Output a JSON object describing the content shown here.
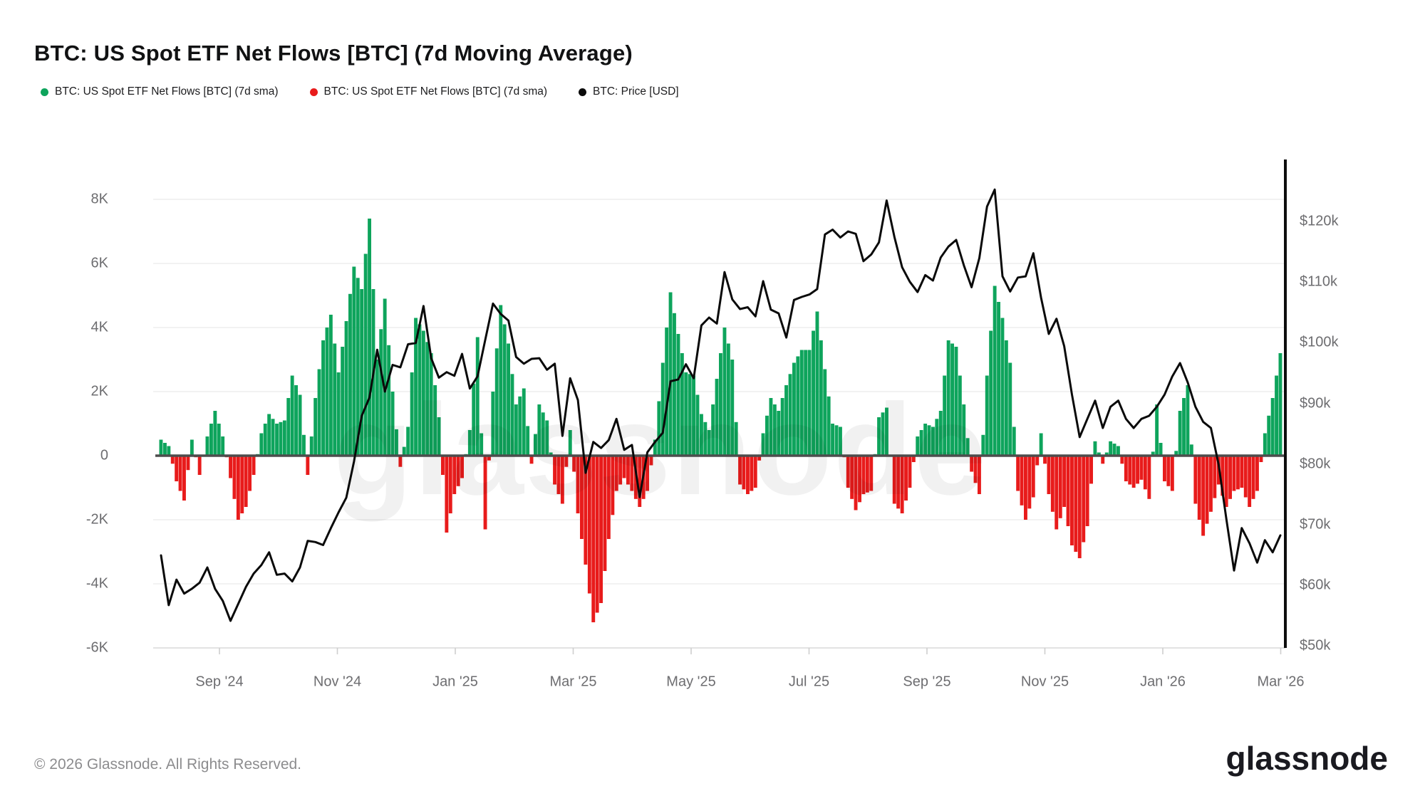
{
  "page": {
    "title": "BTC: US Spot ETF Net Flows [BTC] (7d Moving Average)",
    "background": "#ffffff"
  },
  "legend": {
    "items": [
      {
        "label": "BTC: US Spot ETF Net Flows [BTC] (7d sma)",
        "color": "#0ea45c"
      },
      {
        "label": "BTC: US Spot ETF Net Flows [BTC] (7d sma)",
        "color": "#e81b1b"
      },
      {
        "label": "BTC: Price [USD]",
        "color": "#0a0a0a"
      }
    ]
  },
  "watermark": {
    "text": "glassnode"
  },
  "footer": {
    "copyright": "© 2026 Glassnode. All Rights Reserved.",
    "brand": "glassnode"
  },
  "chart_data": {
    "type": "combo",
    "start_date": "2024-08-02",
    "step_days": 4,
    "x_tick_labels": [
      "Sep '24",
      "Nov '24",
      "Jan '25",
      "Mar '25",
      "May '25",
      "Jul '25",
      "Sep '25",
      "Nov '25",
      "Jan '26",
      "Mar '26"
    ],
    "left_axis": {
      "title": "Net Flows (BTC, thousands)",
      "tick_labels": [
        "8K",
        "6K",
        "4K",
        "2K",
        "0",
        "-2K",
        "-4K",
        "-6K"
      ],
      "range": [
        -6000,
        8000
      ],
      "grid": true
    },
    "right_axis": {
      "title": "BTC Price (USD)",
      "tick_labels": [
        "$120k",
        "$110k",
        "$100k",
        "$90k",
        "$80k",
        "$70k",
        "$60k",
        "$50k"
      ],
      "range": [
        50000,
        125000
      ]
    },
    "colors": {
      "flow_positive": "#0ea45c",
      "flow_negative": "#e81b1b",
      "price_line": "#0a0a0a",
      "zero_line": "#4d4d4d",
      "grid_line": "#ededed",
      "axis_line": "#0d0d0d",
      "baseline": "#d9d9d9"
    },
    "series": [
      {
        "name": "BTC: US Spot ETF Net Flows [BTC] (7d sma)",
        "type": "bar",
        "unit": "K BTC",
        "values": [
          0.5,
          0.3,
          -0.8,
          -1.4,
          0.5,
          -0.6,
          0.6,
          1.4,
          0.6,
          -0.7,
          -2.0,
          -1.6,
          -0.6,
          0.7,
          1.3,
          1.0,
          1.1,
          2.5,
          1.9,
          -0.6,
          1.8,
          3.6,
          4.4,
          2.6,
          4.2,
          5.9,
          5.2,
          7.4,
          3.0,
          4.9,
          2.0,
          -0.35,
          0.9,
          4.3,
          3.9,
          3.2,
          1.2,
          -2.4,
          -1.2,
          -0.7,
          0.8,
          3.7,
          -2.3,
          2.0,
          4.7,
          3.5,
          1.6,
          2.1,
          -0.25,
          1.6,
          1.1,
          -0.9,
          -1.5,
          0.8,
          -1.8,
          -3.4,
          -5.2,
          -4.6,
          -2.6,
          -1.1,
          -0.7,
          -1.1,
          -1.6,
          -1.1,
          0.5,
          2.9,
          5.1,
          3.8,
          2.6,
          2.5,
          1.3,
          0.8,
          2.4,
          4.0,
          3.0,
          -0.9,
          -1.2,
          -1.0,
          0.7,
          1.8,
          1.4,
          2.2,
          2.9,
          3.3,
          3.3,
          4.5,
          2.7,
          1.0,
          0.9,
          -1.0,
          -1.7,
          -1.2,
          -1.1,
          1.2,
          1.5,
          -1.5,
          -1.8,
          -1.0,
          0.6,
          1.0,
          0.9,
          1.4,
          3.6,
          3.4,
          1.6,
          -0.5,
          -1.2,
          2.5,
          5.3,
          4.3,
          2.9,
          -1.1,
          -2.0,
          -1.3,
          0.7,
          -1.2,
          -2.3,
          -1.6,
          -2.8,
          -3.2,
          -2.2,
          0.45,
          -0.25,
          0.45,
          0.3,
          -0.8,
          -1.0,
          -0.75,
          -1.35,
          1.6,
          -0.8,
          -1.1,
          1.4,
          2.2,
          -1.5,
          -2.5,
          -1.75,
          -0.9,
          -1.6,
          -1.1,
          -1.0,
          -1.6,
          -1.1,
          0.7,
          1.8,
          3.2
        ]
      },
      {
        "name": "BTC: Price [USD]",
        "type": "line",
        "unit": "k USD",
        "values": [
          65.0,
          56.8,
          61.0,
          58.7,
          59.5,
          60.5,
          63.0,
          59.5,
          57.5,
          54.2,
          57.0,
          59.8,
          62.0,
          63.4,
          65.5,
          61.8,
          62.0,
          60.7,
          63.0,
          67.4,
          67.2,
          66.7,
          69.5,
          72.1,
          74.5,
          80.5,
          88.0,
          91.0,
          98.9,
          92.0,
          96.4,
          96.0,
          99.8,
          100.0,
          106.1,
          97.5,
          94.3,
          95.2,
          94.6,
          98.2,
          92.5,
          94.5,
          100.5,
          106.5,
          104.8,
          103.7,
          97.7,
          96.6,
          97.4,
          97.5,
          95.6,
          96.6,
          84.7,
          94.2,
          90.6,
          78.6,
          83.7,
          82.7,
          84.0,
          87.5,
          82.4,
          83.2,
          74.6,
          82.0,
          83.7,
          85.2,
          93.7,
          94.0,
          96.5,
          94.2,
          102.9,
          104.2,
          103.2,
          111.7,
          107.2,
          105.6,
          105.9,
          104.4,
          110.2,
          105.5,
          104.9,
          100.9,
          107.1,
          107.6,
          108.0,
          108.9,
          117.9,
          118.7,
          117.4,
          118.4,
          118.0,
          113.5,
          114.6,
          116.6,
          123.5,
          117.5,
          112.5,
          110.1,
          108.4,
          111.2,
          110.3,
          114.1,
          115.9,
          117.0,
          112.8,
          109.2,
          114.0,
          122.5,
          125.3,
          111.0,
          108.5,
          110.8,
          111.0,
          114.8,
          107.5,
          101.5,
          104.0,
          99.5,
          91.5,
          84.5,
          87.5,
          90.5,
          86.0,
          89.5,
          90.5,
          87.5,
          86.0,
          87.5,
          88.0,
          89.5,
          91.5,
          94.5,
          96.7,
          93.5,
          89.5,
          87.0,
          86.0,
          80.0,
          71.0,
          62.5,
          69.5,
          67.0,
          63.8,
          67.5,
          65.5,
          68.3
        ]
      }
    ]
  }
}
